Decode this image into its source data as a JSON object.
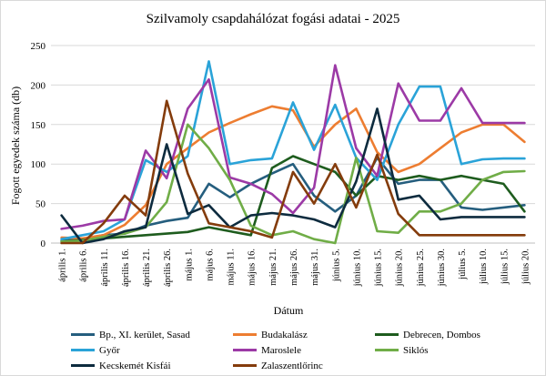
{
  "chart_data": {
    "type": "line",
    "title": "Szilvamoly csapdahálózat fogási adatai - 2025",
    "xlabel": "Dátum",
    "ylabel": "Fogott egyedek száma (db)",
    "ylim": [
      0,
      250
    ],
    "yticks": [
      0,
      50,
      100,
      150,
      200,
      250
    ],
    "grid": true,
    "legend_position": "bottom",
    "categories": [
      "április 1.",
      "április 6.",
      "április 11.",
      "április 16.",
      "április 21.",
      "április 26.",
      "május 1.",
      "május 6.",
      "május 11.",
      "május 16.",
      "május 21.",
      "május 26.",
      "május 31.",
      "június 5.",
      "június 10.",
      "június 15.",
      "június 20.",
      "június 25.",
      "június 30.",
      "július 5.",
      "július 10.",
      "július 15.",
      "július 20."
    ],
    "series": [
      {
        "name": "Bp., XI. kerület, Sasad",
        "color": "#255e7e",
        "values": [
          3,
          5,
          10,
          12,
          22,
          28,
          32,
          75,
          58,
          75,
          88,
          100,
          60,
          40,
          60,
          108,
          75,
          80,
          80,
          45,
          42,
          45,
          48
        ]
      },
      {
        "name": "Budakalász",
        "color": "#ed7d31",
        "values": [
          7,
          6,
          10,
          23,
          48,
          100,
          120,
          140,
          152,
          163,
          173,
          168,
          122,
          150,
          170,
          115,
          90,
          100,
          120,
          140,
          150,
          150,
          128
        ]
      },
      {
        "name": "Debrecen, Dombos",
        "color": "#1e5c1e",
        "values": [
          2,
          4,
          6,
          8,
          10,
          12,
          14,
          20,
          15,
          10,
          95,
          110,
          100,
          90,
          60,
          85,
          80,
          85,
          80,
          85,
          80,
          75,
          40
        ]
      },
      {
        "name": "Győr",
        "color": "#2aa3d8",
        "values": [
          5,
          10,
          15,
          30,
          105,
          90,
          110,
          230,
          100,
          105,
          107,
          178,
          118,
          175,
          108,
          80,
          150,
          198,
          198,
          100,
          106,
          107,
          107
        ]
      },
      {
        "name": "Maroslele",
        "color": "#9c3aa6",
        "values": [
          18,
          22,
          28,
          30,
          117,
          82,
          170,
          207,
          83,
          75,
          62,
          38,
          70,
          225,
          120,
          85,
          202,
          155,
          155,
          196,
          152,
          152,
          152
        ]
      },
      {
        "name": "Siklós",
        "color": "#70ad47",
        "values": [
          2,
          3,
          8,
          12,
          20,
          52,
          150,
          120,
          80,
          22,
          10,
          15,
          5,
          0,
          108,
          15,
          13,
          40,
          40,
          50,
          80,
          90,
          91
        ]
      },
      {
        "name": "Kecskemét Kisfái",
        "color": "#0d2b3e",
        "values": [
          35,
          0,
          5,
          15,
          20,
          125,
          37,
          48,
          20,
          35,
          38,
          35,
          30,
          20,
          78,
          170,
          55,
          60,
          30,
          33,
          33,
          33,
          33
        ]
      },
      {
        "name": "Zalaszentlőrinc",
        "color": "#843c0c",
        "values": [
          0,
          0,
          25,
          60,
          35,
          180,
          88,
          25,
          20,
          15,
          7,
          90,
          50,
          100,
          45,
          112,
          37,
          10,
          10,
          10,
          10,
          10,
          10
        ]
      }
    ]
  }
}
